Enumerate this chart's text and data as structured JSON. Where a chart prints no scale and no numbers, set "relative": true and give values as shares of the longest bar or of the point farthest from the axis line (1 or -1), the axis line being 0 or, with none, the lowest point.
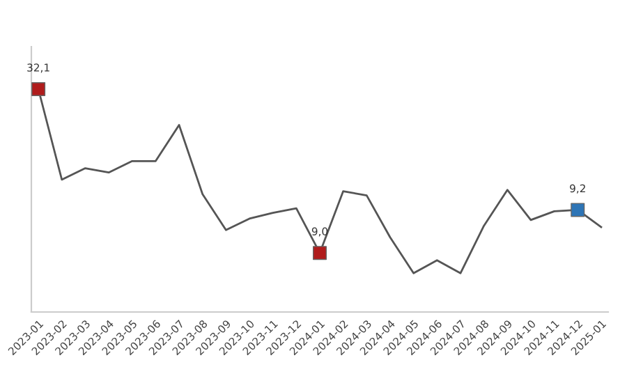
{
  "chart_data": {
    "type": "line",
    "relative": true,
    "categories": [
      "2023-01",
      "2023-02",
      "2023-03",
      "2023-04",
      "2023-05",
      "2023-06",
      "2023-07",
      "2023-08",
      "2023-09",
      "2023-10",
      "2023-11",
      "2023-12",
      "2024-01",
      "2024-02",
      "2024-03",
      "2024-04",
      "2024-05",
      "2024-06",
      "2024-07",
      "2024-08",
      "2024-09",
      "2024-10",
      "2024-11",
      "2024-12",
      "2025-01"
    ],
    "series": [
      {
        "color": "#555555",
        "marker": "none",
        "values": [
          1,
          0.594,
          0.645,
          0.626,
          0.677,
          0.677,
          0.839,
          0.529,
          0.368,
          0.419,
          0.445,
          0.465,
          0.265,
          0.542,
          0.523,
          0.335,
          0.174,
          0.232,
          0.174,
          0.387,
          0.548,
          0.413,
          0.452,
          0.458,
          0.381
        ]
      },
      {
        "type": "scatter",
        "marker": "square",
        "colors": [
          "#b01c1c",
          null,
          null,
          null,
          null,
          null,
          null,
          null,
          null,
          null,
          null,
          null,
          "#b01c1c",
          null,
          null,
          null,
          null,
          null,
          null,
          null,
          null,
          null,
          null,
          "#2e75b6",
          null
        ],
        "values": [
          1,
          null,
          null,
          null,
          null,
          null,
          null,
          null,
          null,
          null,
          null,
          null,
          0.265,
          null,
          null,
          null,
          null,
          null,
          null,
          null,
          null,
          null,
          null,
          0.458,
          null
        ]
      }
    ],
    "annotations": [
      "32,1",
      "9,0",
      "9,2"
    ]
  }
}
